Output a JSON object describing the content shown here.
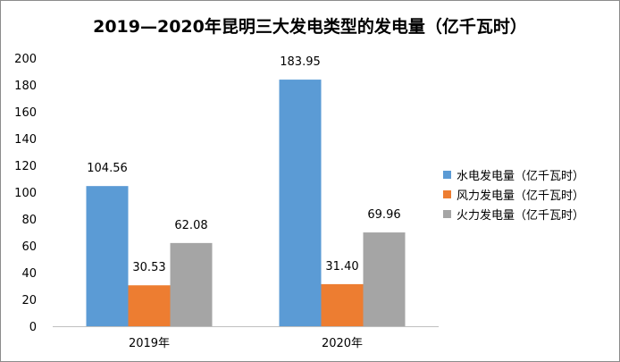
{
  "chart_data": {
    "type": "bar",
    "title": "2019—2020年昆明三大发电类型的发电量（亿千瓦时）",
    "categories": [
      "2019年",
      "2020年"
    ],
    "series": [
      {
        "name": "水电发电量（亿千瓦时）",
        "values": [
          104.56,
          183.95
        ],
        "labels": [
          "104.56",
          "183.95"
        ],
        "color": "#5b9bd5"
      },
      {
        "name": "风力发电量（亿千瓦时）",
        "values": [
          30.53,
          31.4
        ],
        "labels": [
          "30.53",
          "31.40"
        ],
        "color": "#ed7d31"
      },
      {
        "name": "火力发电量（亿千瓦时）",
        "values": [
          62.08,
          69.96
        ],
        "labels": [
          "62.08",
          "69.96"
        ],
        "color": "#a5a5a5"
      }
    ],
    "ylim": [
      0,
      200
    ],
    "yticks": [
      "0",
      "20",
      "40",
      "60",
      "80",
      "100",
      "120",
      "140",
      "160",
      "180",
      "200"
    ],
    "xlabel": "",
    "ylabel": "",
    "grid": false,
    "legend_position": "right"
  }
}
